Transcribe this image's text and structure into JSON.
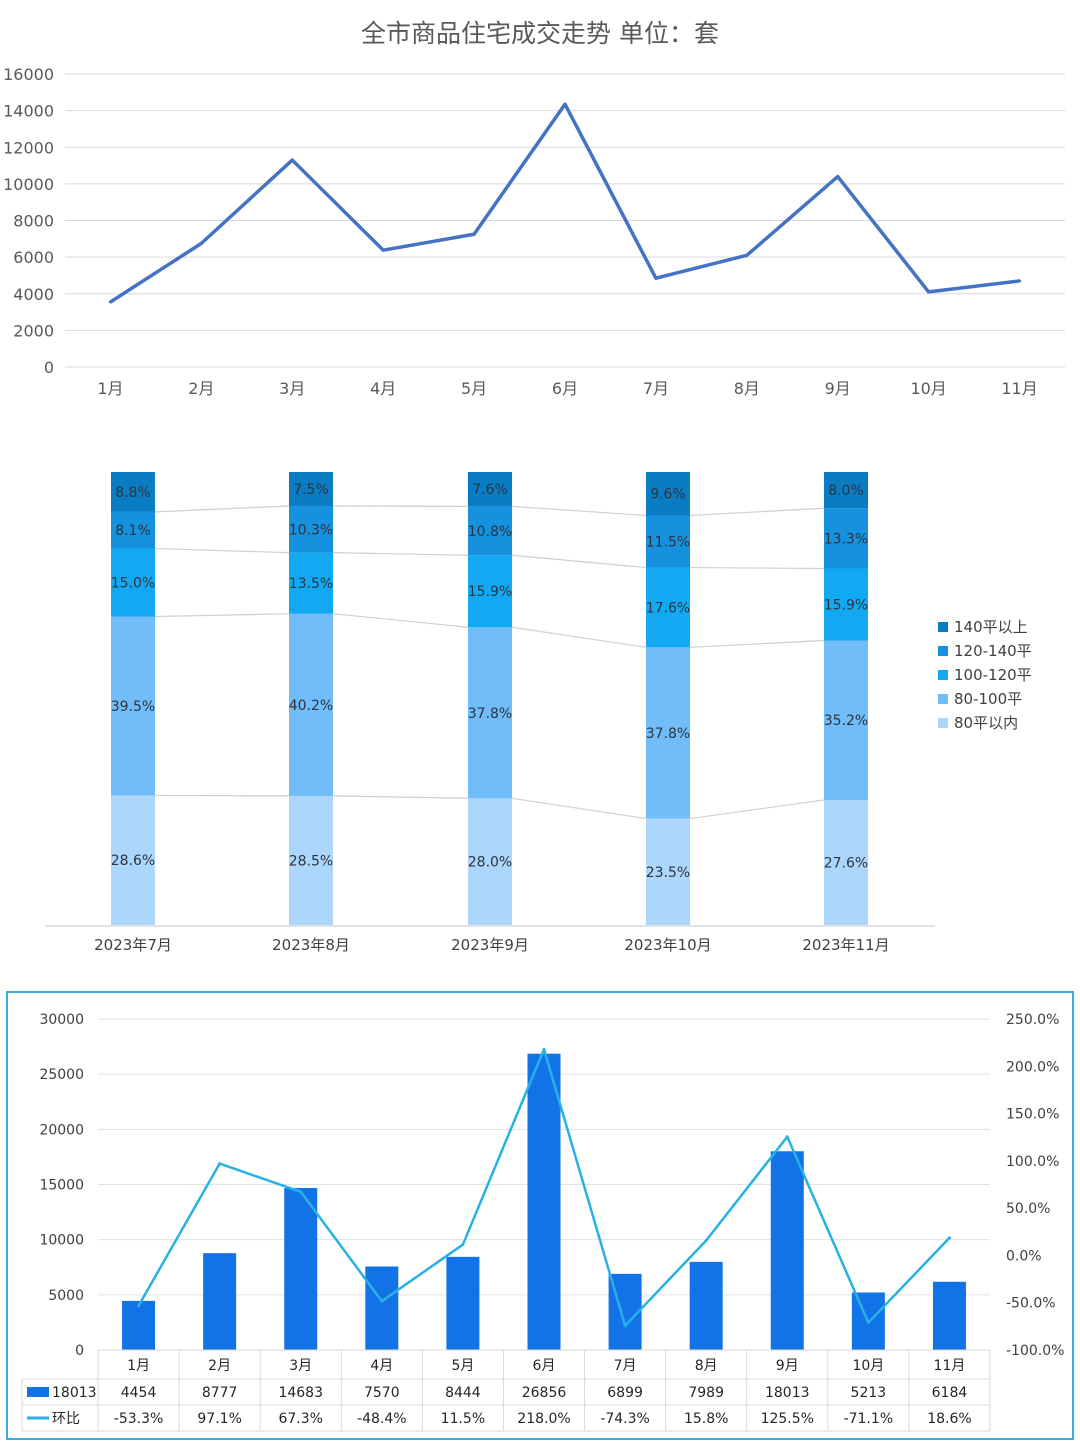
{
  "colors": {
    "line1": "#4472c4",
    "grid": "#d9d9d9",
    "axis_text": "#595959",
    "seg_140plus": "#0a7cc4",
    "seg_120_140": "#1591de",
    "seg_100_120": "#12a9f2",
    "seg_80_100": "#70bdf9",
    "seg_under80": "#acd6fb",
    "bar3": "#1273e6",
    "line3": "#27b1e5",
    "border3": "#3aa9de"
  },
  "chart_data": [
    {
      "type": "line",
      "title": "全市商品住宅成交走势  单位：套",
      "categories": [
        "1月",
        "2月",
        "3月",
        "4月",
        "5月",
        "6月",
        "7月",
        "8月",
        "9月",
        "10月",
        "11月"
      ],
      "values": [
        3550,
        6750,
        11300,
        6380,
        7250,
        14350,
        4850,
        6100,
        10400,
        4100,
        4700
      ],
      "ylim": [
        0,
        16000
      ],
      "yticks": [
        "0",
        "2000",
        "4000",
        "6000",
        "8000",
        "10000",
        "12000",
        "14000",
        "16000"
      ],
      "grid": true
    },
    {
      "type": "bar",
      "stacked": true,
      "categories": [
        "2023年7月",
        "2023年8月",
        "2023年9月",
        "2023年10月",
        "2023年11月"
      ],
      "series": [
        {
          "name": "80平以内",
          "values": [
            28.6,
            28.5,
            28.0,
            23.5,
            27.6
          ],
          "labels": [
            "28.6%",
            "28.5%",
            "28.0%",
            "23.5%",
            "27.6%"
          ]
        },
        {
          "name": "80-100平",
          "values": [
            39.5,
            40.2,
            37.8,
            37.8,
            35.2
          ],
          "labels": [
            "39.5%",
            "40.2%",
            "37.8%",
            "37.8%",
            "35.2%"
          ]
        },
        {
          "name": "100-120平",
          "values": [
            15.0,
            13.5,
            15.9,
            17.6,
            15.9
          ],
          "labels": [
            "15.0%",
            "13.5%",
            "15.9%",
            "17.6%",
            "15.9%"
          ]
        },
        {
          "name": "120-140平",
          "values": [
            8.1,
            10.3,
            10.8,
            11.5,
            13.3
          ],
          "labels": [
            "8.1%",
            "10.3%",
            "10.8%",
            "11.5%",
            "13.3%"
          ]
        },
        {
          "name": "140平以上",
          "values": [
            8.8,
            7.5,
            7.6,
            9.6,
            8.0
          ],
          "labels": [
            "8.8%",
            "7.5%",
            "7.6%",
            "9.6%",
            "8.0%"
          ]
        }
      ],
      "legend_order": [
        "140平以上",
        "120-140平",
        "100-120平",
        "80-100平",
        "80平以内"
      ],
      "legend_position": "right"
    },
    {
      "type": "bar",
      "categories": [
        "1月",
        "2月",
        "3月",
        "4月",
        "5月",
        "6月",
        "7月",
        "8月",
        "9月",
        "10月",
        "11月"
      ],
      "series": [
        {
          "name": "18013",
          "kind": "bar",
          "values": [
            4454,
            8777,
            14683,
            7570,
            8444,
            26856,
            6899,
            7989,
            18013,
            5213,
            6184
          ],
          "labels": [
            "4454",
            "8777",
            "14683",
            "7570",
            "8444",
            "26856",
            "6899",
            "7989",
            "18013",
            "5213",
            "6184"
          ]
        },
        {
          "name": "环比",
          "kind": "line",
          "axis": "right",
          "values": [
            -53.3,
            97.1,
            67.3,
            -48.4,
            11.5,
            218.0,
            -74.3,
            15.8,
            125.5,
            -71.1,
            18.6
          ],
          "labels": [
            "-53.3%",
            "97.1%",
            "67.3%",
            "-48.4%",
            "11.5%",
            "218.0%",
            "-74.3%",
            "15.8%",
            "125.5%",
            "-71.1%",
            "18.6%"
          ]
        }
      ],
      "ylim": [
        0,
        30000
      ],
      "yticks": [
        "0",
        "5000",
        "10000",
        "15000",
        "20000",
        "25000",
        "30000"
      ],
      "y2lim": [
        -100,
        250
      ],
      "y2ticks": [
        "-100.0%",
        "-50.0%",
        "0.0%",
        "50.0%",
        "100.0%",
        "150.0%",
        "200.0%",
        "250.0%"
      ],
      "grid": true,
      "data_table": true
    }
  ]
}
